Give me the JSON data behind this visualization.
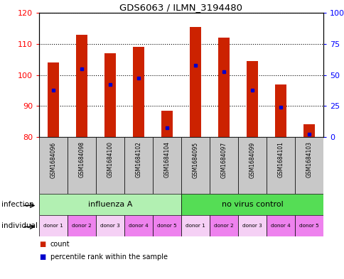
{
  "title": "GDS6063 / ILMN_3194480",
  "samples": [
    "GSM1684096",
    "GSM1684098",
    "GSM1684100",
    "GSM1684102",
    "GSM1684104",
    "GSM1684095",
    "GSM1684097",
    "GSM1684099",
    "GSM1684101",
    "GSM1684103"
  ],
  "bar_tops": [
    104.0,
    113.0,
    107.0,
    109.0,
    88.5,
    115.5,
    112.0,
    104.5,
    97.0,
    84.0
  ],
  "blue_dots": [
    95.0,
    102.0,
    97.0,
    99.0,
    83.0,
    103.0,
    101.0,
    95.0,
    89.5,
    81.0
  ],
  "bar_bottom": 80,
  "ylim_left": [
    80,
    120
  ],
  "ylim_right": [
    0,
    100
  ],
  "yticks_left": [
    80,
    90,
    100,
    110,
    120
  ],
  "yticks_right": [
    0,
    25,
    50,
    75,
    100
  ],
  "infection_groups": [
    {
      "label": "influenza A",
      "start": 0,
      "end": 5,
      "color": "#b2f0b2"
    },
    {
      "label": "no virus control",
      "start": 5,
      "end": 10,
      "color": "#55dd55"
    }
  ],
  "donors": [
    "donor 1",
    "donor 2",
    "donor 3",
    "donor 4",
    "donor 5",
    "donor 1",
    "donor 2",
    "donor 3",
    "donor 4",
    "donor 5"
  ],
  "donor_colors": [
    "#f5d0f5",
    "#ee82ee",
    "#f5d0f5",
    "#ee82ee",
    "#ee82ee",
    "#f5d0f5",
    "#ee82ee",
    "#f5d0f5",
    "#ee82ee",
    "#ee82ee"
  ],
  "bar_color": "#cc2200",
  "blue_dot_color": "#0000cc",
  "sample_bg_color": "#c8c8c8",
  "legend_count_color": "#cc2200",
  "legend_pct_color": "#0000cc"
}
